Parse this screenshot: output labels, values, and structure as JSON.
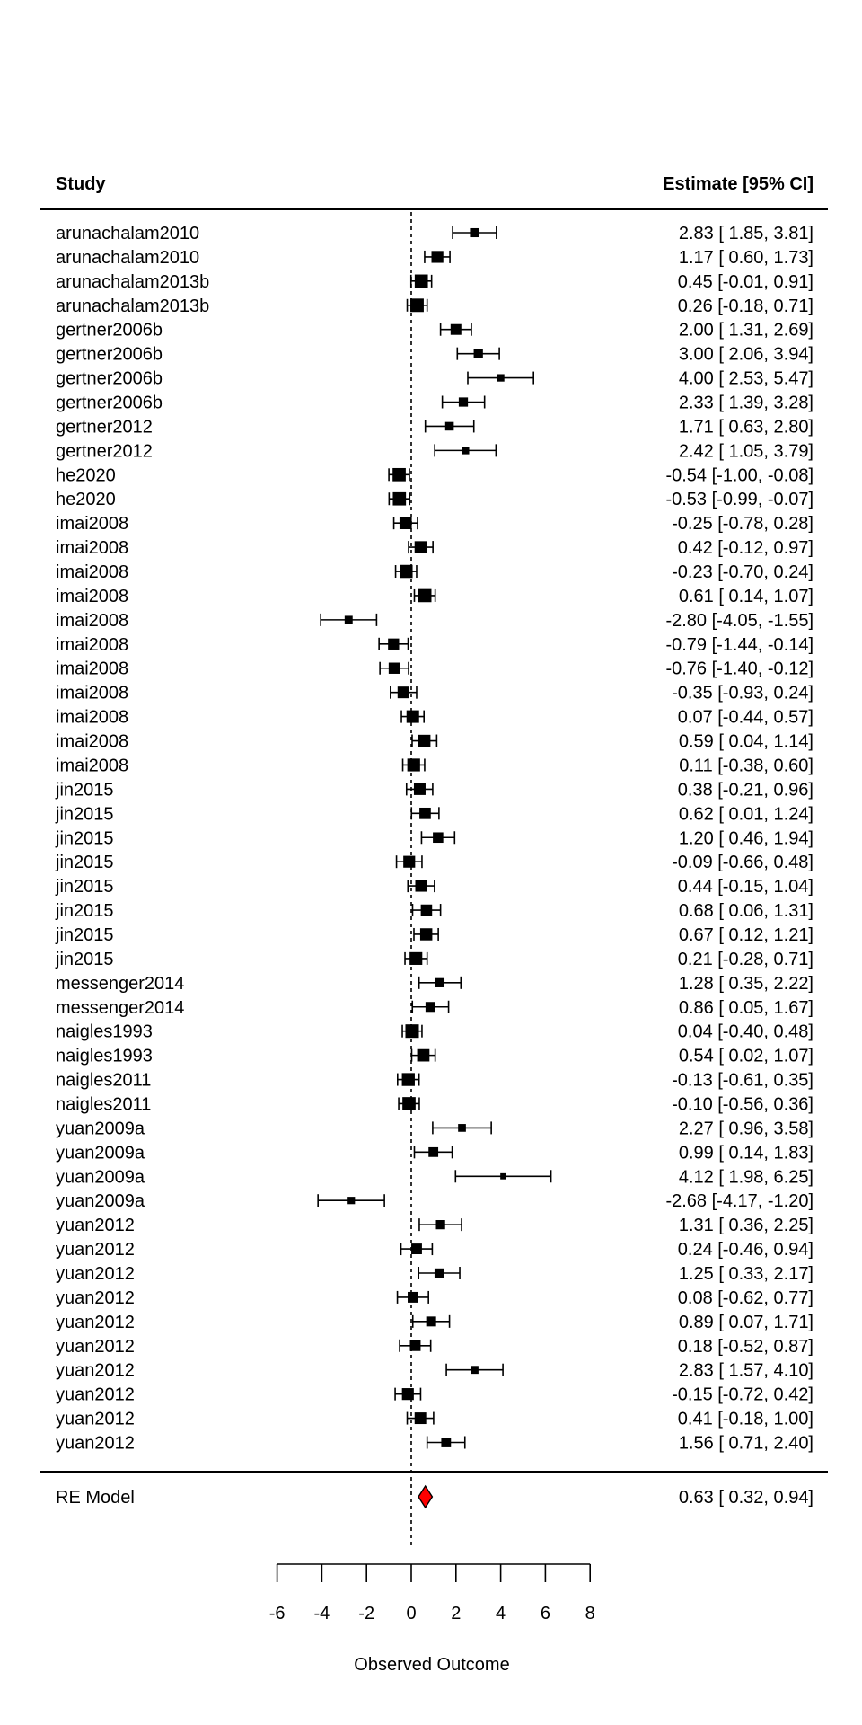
{
  "chart_data": {
    "type": "forest",
    "headers": {
      "study": "Study",
      "estimate": "Estimate [95% CI]"
    },
    "xlabel": "Observed Outcome",
    "xlim": [
      -6,
      8
    ],
    "x_ticks": [
      -6,
      -4,
      -2,
      0,
      2,
      4,
      6,
      8
    ],
    "reference_line": 0,
    "studies": [
      {
        "label": "arunachalam2010",
        "est": 2.83,
        "lo": 1.85,
        "hi": 3.81,
        "text": "2.83 [ 1.85,  3.81]"
      },
      {
        "label": "arunachalam2010",
        "est": 1.17,
        "lo": 0.6,
        "hi": 1.73,
        "text": "1.17 [ 0.60,  1.73]"
      },
      {
        "label": "arunachalam2013b",
        "est": 0.45,
        "lo": -0.01,
        "hi": 0.91,
        "text": "0.45 [-0.01,  0.91]"
      },
      {
        "label": "arunachalam2013b",
        "est": 0.26,
        "lo": -0.18,
        "hi": 0.71,
        "text": "0.26 [-0.18,  0.71]"
      },
      {
        "label": "gertner2006b",
        "est": 2.0,
        "lo": 1.31,
        "hi": 2.69,
        "text": "2.00 [ 1.31,  2.69]"
      },
      {
        "label": "gertner2006b",
        "est": 3.0,
        "lo": 2.06,
        "hi": 3.94,
        "text": "3.00 [ 2.06,  3.94]"
      },
      {
        "label": "gertner2006b",
        "est": 4.0,
        "lo": 2.53,
        "hi": 5.47,
        "text": "4.00 [ 2.53,  5.47]"
      },
      {
        "label": "gertner2006b",
        "est": 2.33,
        "lo": 1.39,
        "hi": 3.28,
        "text": "2.33 [ 1.39,  3.28]"
      },
      {
        "label": "gertner2012",
        "est": 1.71,
        "lo": 0.63,
        "hi": 2.8,
        "text": "1.71 [ 0.63,  2.80]"
      },
      {
        "label": "gertner2012",
        "est": 2.42,
        "lo": 1.05,
        "hi": 3.79,
        "text": "2.42 [ 1.05,  3.79]"
      },
      {
        "label": "he2020",
        "est": -0.54,
        "lo": -1.0,
        "hi": -0.08,
        "text": "-0.54 [-1.00, -0.08]"
      },
      {
        "label": "he2020",
        "est": -0.53,
        "lo": -0.99,
        "hi": -0.07,
        "text": "-0.53 [-0.99, -0.07]"
      },
      {
        "label": "imai2008",
        "est": -0.25,
        "lo": -0.78,
        "hi": 0.28,
        "text": "-0.25 [-0.78,  0.28]"
      },
      {
        "label": "imai2008",
        "est": 0.42,
        "lo": -0.12,
        "hi": 0.97,
        "text": "0.42 [-0.12,  0.97]"
      },
      {
        "label": "imai2008",
        "est": -0.23,
        "lo": -0.7,
        "hi": 0.24,
        "text": "-0.23 [-0.70,  0.24]"
      },
      {
        "label": "imai2008",
        "est": 0.61,
        "lo": 0.14,
        "hi": 1.07,
        "text": "0.61 [ 0.14,  1.07]"
      },
      {
        "label": "imai2008",
        "est": -2.8,
        "lo": -4.05,
        "hi": -1.55,
        "text": "-2.80 [-4.05, -1.55]"
      },
      {
        "label": "imai2008",
        "est": -0.79,
        "lo": -1.44,
        "hi": -0.14,
        "text": "-0.79 [-1.44, -0.14]"
      },
      {
        "label": "imai2008",
        "est": -0.76,
        "lo": -1.4,
        "hi": -0.12,
        "text": "-0.76 [-1.40, -0.12]"
      },
      {
        "label": "imai2008",
        "est": -0.35,
        "lo": -0.93,
        "hi": 0.24,
        "text": "-0.35 [-0.93,  0.24]"
      },
      {
        "label": "imai2008",
        "est": 0.07,
        "lo": -0.44,
        "hi": 0.57,
        "text": "0.07 [-0.44,  0.57]"
      },
      {
        "label": "imai2008",
        "est": 0.59,
        "lo": 0.04,
        "hi": 1.14,
        "text": "0.59 [ 0.04,  1.14]"
      },
      {
        "label": "imai2008",
        "est": 0.11,
        "lo": -0.38,
        "hi": 0.6,
        "text": "0.11 [-0.38,  0.60]"
      },
      {
        "label": "jin2015",
        "est": 0.38,
        "lo": -0.21,
        "hi": 0.96,
        "text": "0.38 [-0.21,  0.96]"
      },
      {
        "label": "jin2015",
        "est": 0.62,
        "lo": 0.01,
        "hi": 1.24,
        "text": "0.62 [ 0.01,  1.24]"
      },
      {
        "label": "jin2015",
        "est": 1.2,
        "lo": 0.46,
        "hi": 1.94,
        "text": "1.20 [ 0.46,  1.94]"
      },
      {
        "label": "jin2015",
        "est": -0.09,
        "lo": -0.66,
        "hi": 0.48,
        "text": "-0.09 [-0.66,  0.48]"
      },
      {
        "label": "jin2015",
        "est": 0.44,
        "lo": -0.15,
        "hi": 1.04,
        "text": "0.44 [-0.15,  1.04]"
      },
      {
        "label": "jin2015",
        "est": 0.68,
        "lo": 0.06,
        "hi": 1.31,
        "text": "0.68 [ 0.06,  1.31]"
      },
      {
        "label": "jin2015",
        "est": 0.67,
        "lo": 0.12,
        "hi": 1.21,
        "text": "0.67 [ 0.12,  1.21]"
      },
      {
        "label": "jin2015",
        "est": 0.21,
        "lo": -0.28,
        "hi": 0.71,
        "text": "0.21 [-0.28,  0.71]"
      },
      {
        "label": "messenger2014",
        "est": 1.28,
        "lo": 0.35,
        "hi": 2.22,
        "text": "1.28 [ 0.35,  2.22]"
      },
      {
        "label": "messenger2014",
        "est": 0.86,
        "lo": 0.05,
        "hi": 1.67,
        "text": "0.86 [ 0.05,  1.67]"
      },
      {
        "label": "naigles1993",
        "est": 0.04,
        "lo": -0.4,
        "hi": 0.48,
        "text": "0.04 [-0.40,  0.48]"
      },
      {
        "label": "naigles1993",
        "est": 0.54,
        "lo": 0.02,
        "hi": 1.07,
        "text": "0.54 [ 0.02,  1.07]"
      },
      {
        "label": "naigles2011",
        "est": -0.13,
        "lo": -0.61,
        "hi": 0.35,
        "text": "-0.13 [-0.61,  0.35]"
      },
      {
        "label": "naigles2011",
        "est": -0.1,
        "lo": -0.56,
        "hi": 0.36,
        "text": "-0.10 [-0.56,  0.36]"
      },
      {
        "label": "yuan2009a",
        "est": 2.27,
        "lo": 0.96,
        "hi": 3.58,
        "text": "2.27 [ 0.96,  3.58]"
      },
      {
        "label": "yuan2009a",
        "est": 0.99,
        "lo": 0.14,
        "hi": 1.83,
        "text": "0.99 [ 0.14,  1.83]"
      },
      {
        "label": "yuan2009a",
        "est": 4.12,
        "lo": 1.98,
        "hi": 6.25,
        "text": "4.12 [ 1.98,  6.25]"
      },
      {
        "label": "yuan2009a",
        "est": -2.68,
        "lo": -4.17,
        "hi": -1.2,
        "text": "-2.68 [-4.17, -1.20]"
      },
      {
        "label": "yuan2012",
        "est": 1.31,
        "lo": 0.36,
        "hi": 2.25,
        "text": "1.31 [ 0.36,  2.25]"
      },
      {
        "label": "yuan2012",
        "est": 0.24,
        "lo": -0.46,
        "hi": 0.94,
        "text": "0.24 [-0.46,  0.94]"
      },
      {
        "label": "yuan2012",
        "est": 1.25,
        "lo": 0.33,
        "hi": 2.17,
        "text": "1.25 [ 0.33,  2.17]"
      },
      {
        "label": "yuan2012",
        "est": 0.08,
        "lo": -0.62,
        "hi": 0.77,
        "text": "0.08 [-0.62,  0.77]"
      },
      {
        "label": "yuan2012",
        "est": 0.89,
        "lo": 0.07,
        "hi": 1.71,
        "text": "0.89 [ 0.07,  1.71]"
      },
      {
        "label": "yuan2012",
        "est": 0.18,
        "lo": -0.52,
        "hi": 0.87,
        "text": "0.18 [-0.52,  0.87]"
      },
      {
        "label": "yuan2012",
        "est": 2.83,
        "lo": 1.57,
        "hi": 4.1,
        "text": "2.83 [ 1.57,  4.10]"
      },
      {
        "label": "yuan2012",
        "est": -0.15,
        "lo": -0.72,
        "hi": 0.42,
        "text": "-0.15 [-0.72,  0.42]"
      },
      {
        "label": "yuan2012",
        "est": 0.41,
        "lo": -0.18,
        "hi": 1.0,
        "text": "0.41 [-0.18,  1.00]"
      },
      {
        "label": "yuan2012",
        "est": 1.56,
        "lo": 0.71,
        "hi": 2.4,
        "text": "1.56 [ 0.71,  2.40]"
      }
    ],
    "summary": {
      "label": "RE Model",
      "est": 0.63,
      "lo": 0.32,
      "hi": 0.94,
      "text": "0.63 [ 0.32,  0.94]"
    },
    "colors": {
      "points": "#000000",
      "summary_fill": "#ff0000",
      "summary_stroke": "#000000"
    }
  }
}
